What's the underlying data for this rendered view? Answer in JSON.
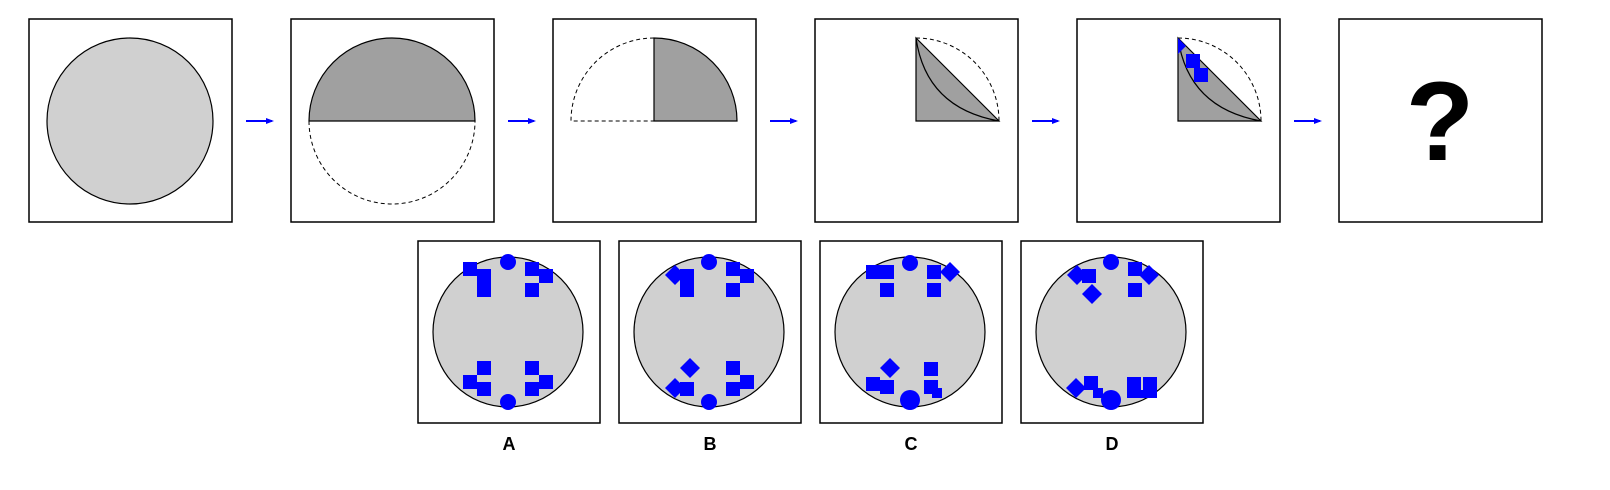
{
  "puzzle": {
    "type": "paper-folding-punching",
    "question_mark": "?",
    "steps": [
      {
        "name": "full-circle",
        "description_icon": "circle"
      },
      {
        "name": "fold-in-half",
        "description_icon": "half-circle"
      },
      {
        "name": "fold-to-quarter",
        "description_icon": "quarter-circle"
      },
      {
        "name": "fold-to-eighth",
        "description_icon": "eighth-wedge"
      },
      {
        "name": "punch-holes",
        "description_icon": "punched-wedge"
      }
    ],
    "options": [
      {
        "label": "A"
      },
      {
        "label": "B"
      },
      {
        "label": "C"
      },
      {
        "label": "D"
      }
    ]
  },
  "colors": {
    "paper": "#d0d0d0",
    "folded": "#a0a0a0",
    "hole": "#0000ff",
    "arrow": "#0000ff",
    "border": "#000000"
  }
}
